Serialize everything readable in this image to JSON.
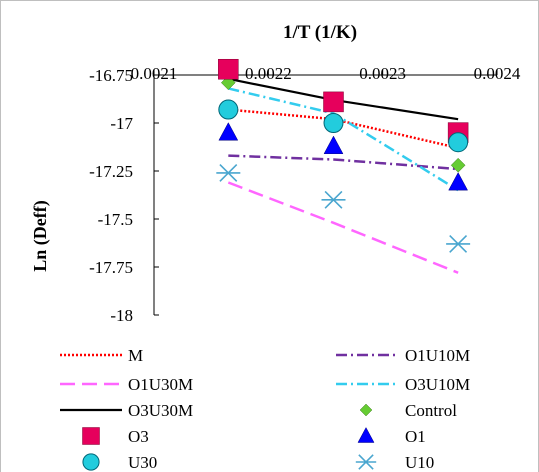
{
  "chart_data": {
    "type": "line",
    "title": "",
    "xlabel": "1/T (1/K)",
    "ylabel": "Ln (Deff)",
    "x_axis_position": "top",
    "xlim": [
      0.0021,
      0.0024
    ],
    "ylim": [
      -18,
      -16.75
    ],
    "x_ticks": [
      0.0021,
      0.0022,
      0.0023,
      0.0024
    ],
    "x_tick_labels": [
      "0.0021",
      "0.0022",
      "0.0023",
      "0.0024"
    ],
    "y_ticks": [
      -16.75,
      -17,
      -17.25,
      -17.5,
      -17.75,
      -18
    ],
    "y_tick_labels": [
      "-16.75",
      "-17",
      "-17.25",
      "-17.5",
      "-17.75",
      "-18"
    ],
    "x": [
      0.002165,
      0.002257,
      0.002366
    ],
    "grid": false,
    "legend_position": "bottom",
    "series": [
      {
        "name": "M",
        "kind": "line",
        "color": "#ff0000",
        "dash": "dotted",
        "values": [
          -16.93,
          -16.98,
          -17.13
        ]
      },
      {
        "name": "O1U10M",
        "kind": "line",
        "color": "#7030a0",
        "dash": "dashdot",
        "values": [
          -17.17,
          -17.19,
          -17.24
        ]
      },
      {
        "name": "O1U30M",
        "kind": "line",
        "color": "#ff66ff",
        "dash": "longdash",
        "values": [
          -17.31,
          -17.52,
          -17.78
        ]
      },
      {
        "name": "O3U10M",
        "kind": "line",
        "color": "#33ccee",
        "dash": "dashdot",
        "values": [
          -16.82,
          -16.95,
          -17.35
        ]
      },
      {
        "name": "O3U30M",
        "kind": "line",
        "color": "#000000",
        "dash": "solid",
        "values": [
          -16.77,
          -16.88,
          -16.98
        ]
      },
      {
        "name": "Control",
        "kind": "marker",
        "marker": "diamond",
        "color": "#66cc33",
        "values": [
          -16.79,
          -16.99,
          -17.22
        ]
      },
      {
        "name": "O3",
        "kind": "marker",
        "marker": "square",
        "color": "#e6005c",
        "values": [
          -16.72,
          -16.89,
          -17.05
        ]
      },
      {
        "name": "O1",
        "kind": "marker",
        "marker": "triangle",
        "color": "#0000ff",
        "values": [
          -17.05,
          -17.12,
          -17.31
        ]
      },
      {
        "name": "U30",
        "kind": "marker",
        "marker": "circle",
        "color": "#22ccdd",
        "values": [
          -16.93,
          -17.0,
          -17.1
        ]
      },
      {
        "name": "U10",
        "kind": "marker",
        "marker": "star",
        "color": "#4aa6cf",
        "values": [
          -17.26,
          -17.4,
          -17.63
        ]
      }
    ]
  }
}
